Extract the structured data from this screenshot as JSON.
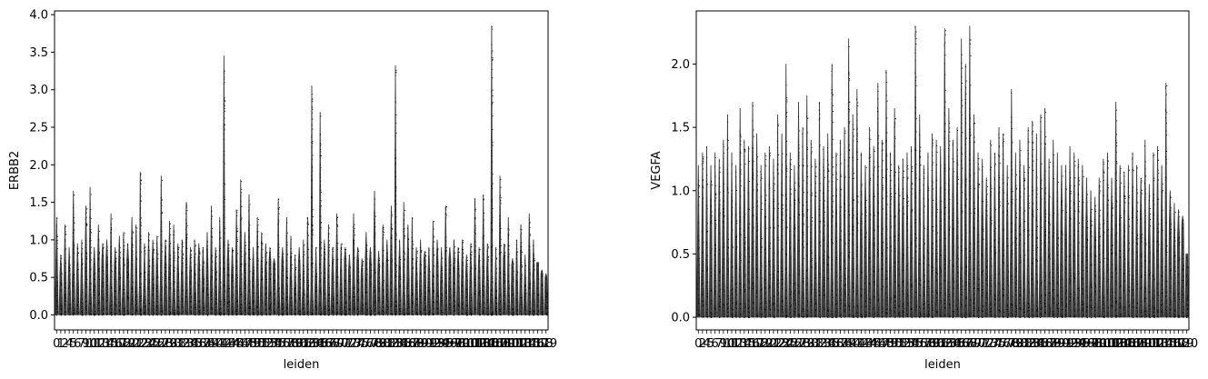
{
  "chart_data": [
    {
      "type": "violin",
      "title": "",
      "xlabel": "leiden",
      "ylabel": "ERBB2",
      "ylim": [
        -0.2,
        4.05
      ],
      "yticks": [
        0.0,
        0.5,
        1.0,
        1.5,
        2.0,
        2.5,
        3.0,
        3.5,
        4.0
      ],
      "ytick_labels": [
        "0.0",
        "0.5",
        "1.0",
        "1.5",
        "2.0",
        "2.5",
        "3.0",
        "3.5",
        "4.0"
      ],
      "n_categories": 118,
      "grid": false,
      "legend": "none",
      "color": "#000000",
      "max_values": [
        1.3,
        0.8,
        1.2,
        0.9,
        1.65,
        0.95,
        1.0,
        1.45,
        1.7,
        0.9,
        1.2,
        0.95,
        1.0,
        1.35,
        0.9,
        1.05,
        1.1,
        0.95,
        1.3,
        1.2,
        1.9,
        0.95,
        1.1,
        1.0,
        1.05,
        1.85,
        1.0,
        1.25,
        1.2,
        0.95,
        1.0,
        1.5,
        0.9,
        1.0,
        0.95,
        0.9,
        1.1,
        1.45,
        0.9,
        1.3,
        3.45,
        1.0,
        0.9,
        1.4,
        1.8,
        1.1,
        1.6,
        0.9,
        1.3,
        1.1,
        0.95,
        0.9,
        0.75,
        1.55,
        0.9,
        1.3,
        1.05,
        0.8,
        0.9,
        1.0,
        1.3,
        3.05,
        0.9,
        2.7,
        1.0,
        1.2,
        0.9,
        1.35,
        0.95,
        0.9,
        0.8,
        1.35,
        0.9,
        0.75,
        1.1,
        0.9,
        1.65,
        0.85,
        1.2,
        1.0,
        1.45,
        3.32,
        1.0,
        1.5,
        1.2,
        1.3,
        0.9,
        1.0,
        0.85,
        0.9,
        1.25,
        1.0,
        0.9,
        1.45,
        0.9,
        1.0,
        0.9,
        1.0,
        0.8,
        0.95,
        1.55,
        0.9,
        1.6,
        0.95,
        3.85,
        0.9,
        1.85,
        0.95,
        1.3,
        0.75,
        1.0,
        1.2,
        0.8,
        1.35,
        1.0,
        0.7,
        0.6,
        0.55
      ],
      "xtick_labels": [
        "0",
        "1",
        "2",
        "4",
        "5",
        "6",
        "7",
        "9",
        "10",
        "11",
        "12",
        "13",
        "14",
        "15",
        "16",
        "17",
        "18",
        "19",
        "20",
        "21",
        "22",
        "23",
        "24",
        "25",
        "26",
        "27",
        "28",
        "29",
        "30",
        "31",
        "32",
        "33",
        "34",
        "35",
        "36",
        "37",
        "38",
        "39",
        "40",
        "41",
        "42",
        "43",
        "44",
        "45",
        "46",
        "47",
        "48",
        "49",
        "50",
        "51",
        "52",
        "53",
        "54",
        "55",
        "56",
        "57",
        "58",
        "59",
        "60",
        "61",
        "62",
        "63",
        "64",
        "65",
        "66",
        "67",
        "68",
        "69",
        "70",
        "71",
        "72",
        "73",
        "74",
        "75",
        "76",
        "77",
        "78",
        "79",
        "80",
        "81",
        "82",
        "83",
        "84",
        "85",
        "86",
        "87",
        "88",
        "89",
        "90",
        "91",
        "92",
        "93",
        "94",
        "95",
        "96",
        "97",
        "98",
        "99",
        "100",
        "101",
        "102",
        "103",
        "104",
        "105",
        "106",
        "107",
        "108",
        "109",
        "110",
        "111",
        "112",
        "113",
        "114",
        "115",
        "116",
        "117",
        "118",
        "119"
      ]
    },
    {
      "type": "violin",
      "title": "",
      "xlabel": "leiden",
      "ylabel": "VEGFA",
      "ylim": [
        -0.1,
        2.42
      ],
      "yticks": [
        0.0,
        0.5,
        1.0,
        1.5,
        2.0
      ],
      "ytick_labels": [
        "0.0",
        "0.5",
        "1.0",
        "1.5",
        "2.0"
      ],
      "n_categories": 118,
      "grid": false,
      "legend": "none",
      "color": "#000000",
      "max_values": [
        1.2,
        1.3,
        1.35,
        1.2,
        1.3,
        1.25,
        1.4,
        1.6,
        1.3,
        1.2,
        1.65,
        1.4,
        1.35,
        1.7,
        1.45,
        1.2,
        1.3,
        1.35,
        1.25,
        1.6,
        1.45,
        2.0,
        1.3,
        1.2,
        1.7,
        1.5,
        1.75,
        1.4,
        1.25,
        1.7,
        1.35,
        1.45,
        2.0,
        1.3,
        1.4,
        1.5,
        2.2,
        1.6,
        1.8,
        1.3,
        1.2,
        1.5,
        1.35,
        1.85,
        1.4,
        1.95,
        1.3,
        1.65,
        1.2,
        1.25,
        1.3,
        1.35,
        2.3,
        1.6,
        1.2,
        1.3,
        1.45,
        1.4,
        1.35,
        2.28,
        1.65,
        1.4,
        1.5,
        2.2,
        2.0,
        2.3,
        1.6,
        1.3,
        1.25,
        1.1,
        1.4,
        1.3,
        1.5,
        1.45,
        1.2,
        1.8,
        1.3,
        1.4,
        1.2,
        1.5,
        1.55,
        1.45,
        1.6,
        1.65,
        1.25,
        1.4,
        1.3,
        1.2,
        1.2,
        1.35,
        1.3,
        1.25,
        1.2,
        1.1,
        1.0,
        0.95,
        1.1,
        1.25,
        1.3,
        1.1,
        1.7,
        1.2,
        1.15,
        1.2,
        1.3,
        1.2,
        1.1,
        1.4,
        1.05,
        1.3,
        1.35,
        1.2,
        1.85,
        1.0,
        0.9,
        0.85,
        0.8,
        0.5
      ],
      "xtick_labels": [
        "0",
        "2",
        "4",
        "5",
        "6",
        "7",
        "9",
        "10",
        "11",
        "12",
        "13",
        "14",
        "15",
        "16",
        "17",
        "18",
        "19",
        "20",
        "21",
        "22",
        "23",
        "24",
        "25",
        "26",
        "27",
        "28",
        "29",
        "30",
        "31",
        "32",
        "33",
        "34",
        "35",
        "36",
        "37",
        "38",
        "39",
        "40",
        "41",
        "42",
        "43",
        "44",
        "45",
        "46",
        "47",
        "48",
        "49",
        "50",
        "51",
        "52",
        "53",
        "54",
        "55",
        "56",
        "57",
        "58",
        "59",
        "60",
        "61",
        "62",
        "63",
        "64",
        "65",
        "66",
        "67",
        "68",
        "69",
        "70",
        "71",
        "72",
        "73",
        "74",
        "75",
        "76",
        "77",
        "78",
        "79",
        "80",
        "81",
        "82",
        "83",
        "84",
        "85",
        "86",
        "87",
        "88",
        "89",
        "90",
        "91",
        "92",
        "93",
        "94",
        "95",
        "96",
        "97",
        "98",
        "99",
        "100",
        "101",
        "102",
        "103",
        "104",
        "105",
        "106",
        "107",
        "108",
        "109",
        "110",
        "111",
        "112",
        "113",
        "114",
        "115",
        "116",
        "117",
        "118",
        "119",
        "120"
      ]
    }
  ]
}
